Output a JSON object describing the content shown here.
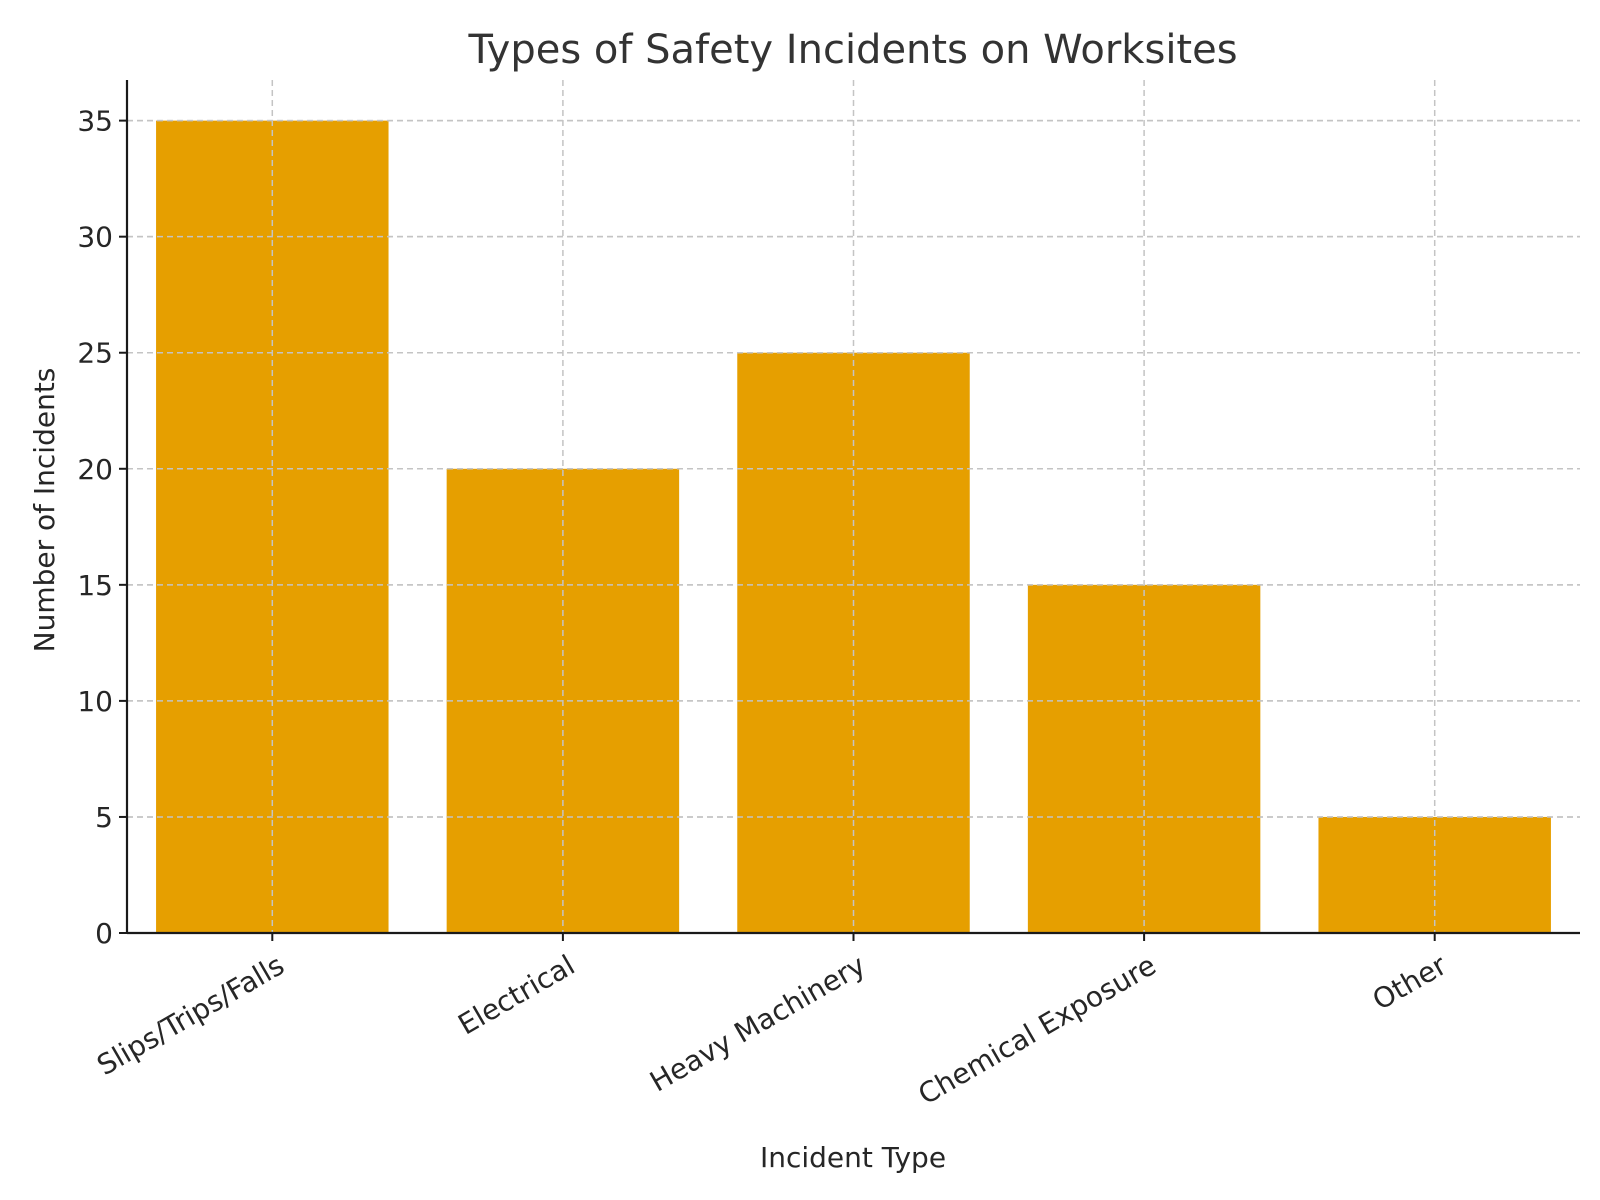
{
  "chart_data": {
    "type": "bar",
    "title": "Types of Safety Incidents on Worksites",
    "xlabel": "Incident Type",
    "ylabel": "Number of Incidents",
    "categories": [
      "Slips/Trips/Falls",
      "Electrical",
      "Heavy Machinery",
      "Chemical Exposure",
      "Other"
    ],
    "values": [
      35,
      20,
      25,
      15,
      5
    ],
    "ylim": [
      0,
      36.75
    ],
    "yticks": [
      0,
      5,
      10,
      15,
      20,
      25,
      30,
      35
    ],
    "grid": true,
    "bar_color": "#E69F00",
    "xtick_rotation_deg": -30
  }
}
